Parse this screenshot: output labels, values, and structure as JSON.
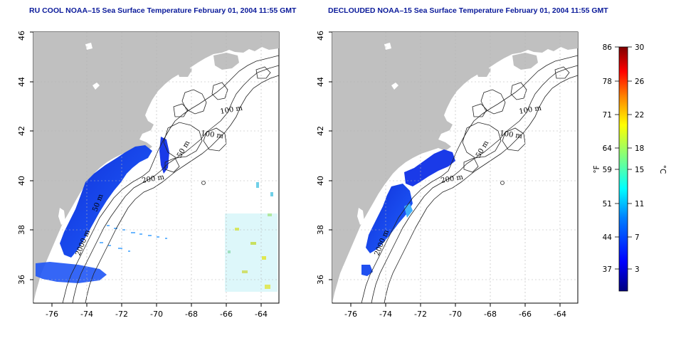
{
  "maps": [
    {
      "title": "RU COOL NOAA–15 Sea Surface Temperature February 01, 2004 11:55 GMT",
      "contour_labels": [
        "100 m",
        "100 m",
        "50 m",
        "200 m",
        "2000 m",
        "50 m"
      ]
    },
    {
      "title": "DECLOUDED NOAA–15 Sea Surface Temperature February 01, 2004 11:55 GMT",
      "contour_labels": [
        "100 m",
        "100 m",
        "50 m",
        "200 m",
        "2000 m"
      ]
    }
  ],
  "x_ticks": [
    "-76",
    "-74",
    "-72",
    "-70",
    "-68",
    "-66",
    "-64"
  ],
  "y_ticks": [
    "36",
    "38",
    "40",
    "42",
    "44",
    "46"
  ],
  "colorbar": {
    "f_label": "°F",
    "c_label": "°C",
    "f_ticks": [
      "86",
      "78",
      "71",
      "64",
      "59",
      "51",
      "44",
      "37"
    ],
    "c_ticks": [
      "30",
      "26",
      "22",
      "18",
      "15",
      "11",
      "7",
      "3"
    ],
    "colors": [
      "#00007f",
      "#0000ff",
      "#0080ff",
      "#00ffff",
      "#80ff80",
      "#ffff00",
      "#ff8000",
      "#ff0000",
      "#7f0000"
    ]
  },
  "colors": {
    "land": "#c0c0c0",
    "title": "#0a1a9a",
    "grid": "#b4b4b4"
  }
}
